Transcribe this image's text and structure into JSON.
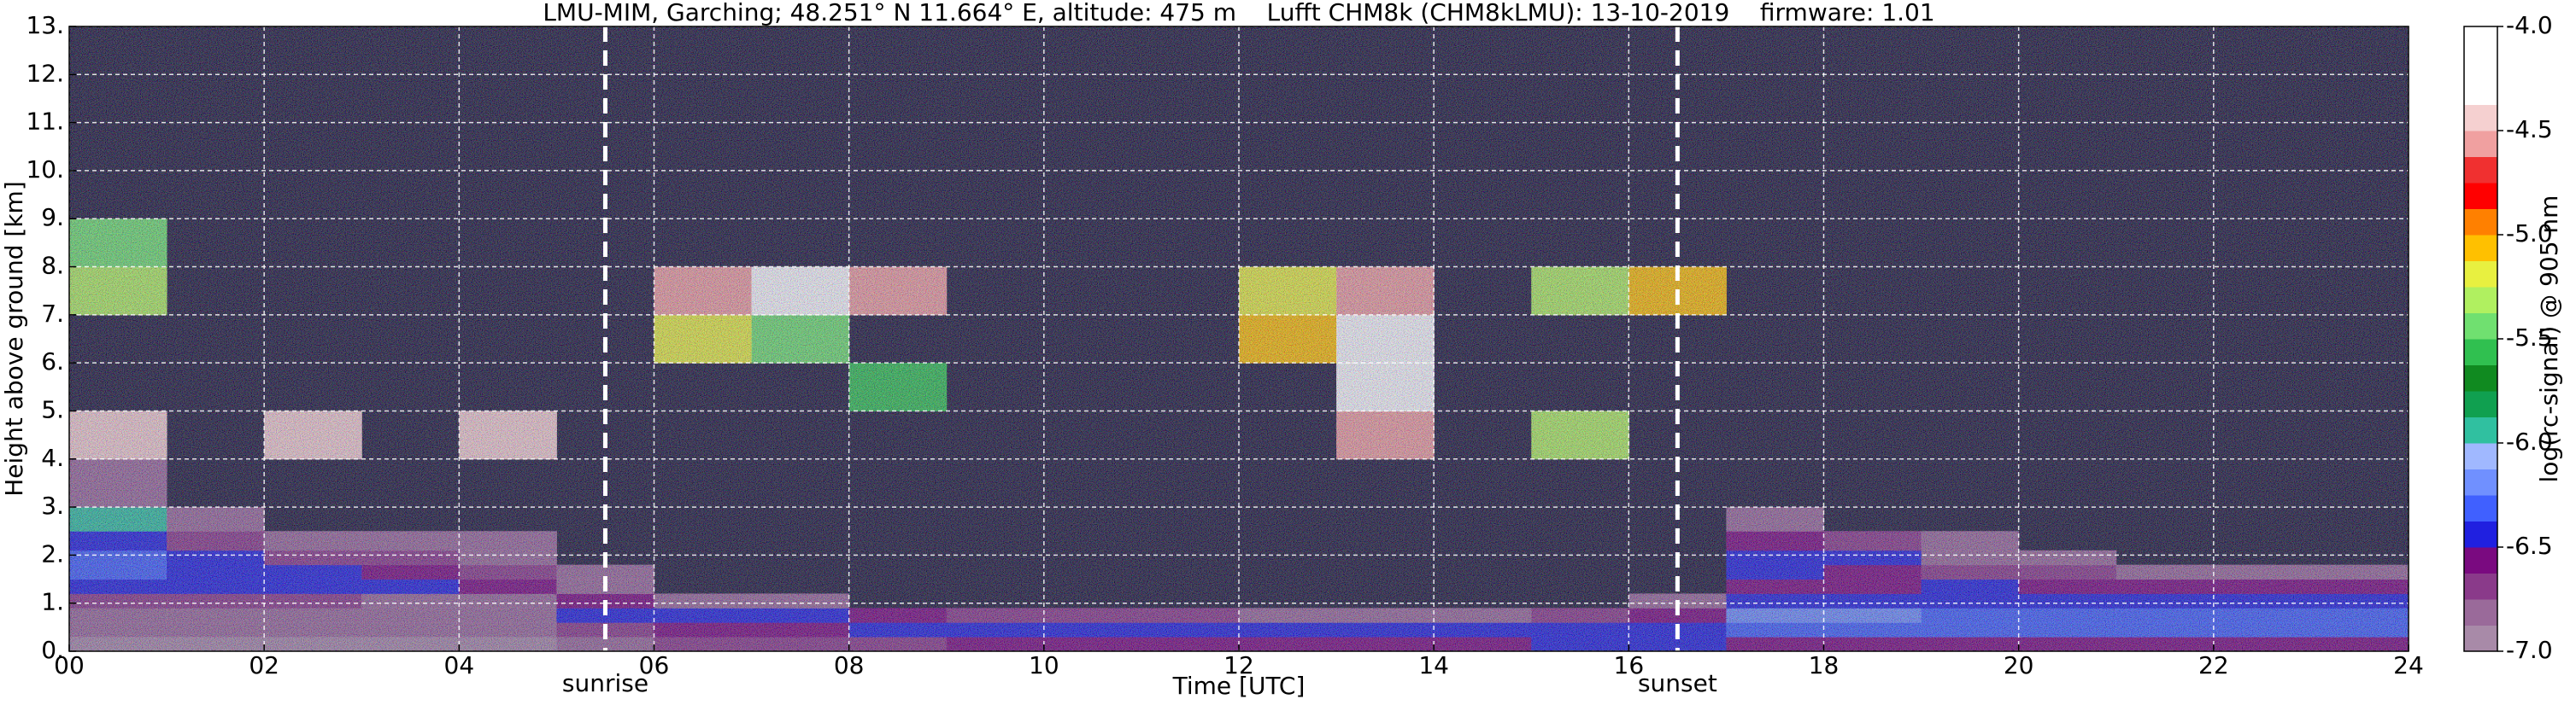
{
  "chart_data": {
    "type": "heatmap",
    "title": "LMU-MIM, Garching; 48.251° N 11.664° E, altitude: 475 m    Lufft CHM8k (CHM8kLMU): 13-10-2019    firmware: 1.01",
    "xlabel": "Time [UTC]",
    "ylabel": "Height above ground [km]",
    "colorbar_label": "log(rc-signal) @ 905 nm",
    "xlim": [
      0,
      24
    ],
    "ylim": [
      0,
      13
    ],
    "xticks": [
      {
        "value": 0,
        "label": "00"
      },
      {
        "value": 2,
        "label": "02"
      },
      {
        "value": 4,
        "label": "04"
      },
      {
        "value": 6,
        "label": "06"
      },
      {
        "value": 8,
        "label": "08"
      },
      10,
      12,
      14,
      16,
      18,
      20,
      22,
      24
    ],
    "yticks": [
      {
        "value": 0,
        "label": "0."
      },
      {
        "value": 1,
        "label": "1."
      },
      {
        "value": 2,
        "label": "2."
      },
      {
        "value": 3,
        "label": "3."
      },
      {
        "value": 4,
        "label": "4."
      },
      {
        "value": 5,
        "label": "5."
      },
      {
        "value": 6,
        "label": "6."
      },
      {
        "value": 7,
        "label": "7."
      },
      {
        "value": 8,
        "label": "8."
      },
      {
        "value": 9,
        "label": "9."
      },
      {
        "value": 10,
        "label": "10."
      },
      {
        "value": 11,
        "label": "11."
      },
      {
        "value": 12,
        "label": "12."
      },
      {
        "value": 13,
        "label": "13."
      }
    ],
    "grid": true,
    "clim": [
      -7,
      -4
    ],
    "cticks": [
      {
        "value": -4,
        "label": "-4.0"
      },
      -4.5,
      {
        "value": -5,
        "label": "-5.0"
      },
      -5.5,
      {
        "value": -6,
        "label": "-6.0"
      },
      -6.5,
      {
        "value": -7,
        "label": "-7.0"
      }
    ],
    "colors": [
      "#a88aa8",
      "#9a6a9a",
      "#8a3a8a",
      "#7a0a80",
      "#2020e0",
      "#4060ff",
      "#7090ff",
      "#a0b8ff",
      "#30c0a0",
      "#10a050",
      "#108a20",
      "#30c050",
      "#70e070",
      "#b0f060",
      "#e8f040",
      "#ffc000",
      "#ff8000",
      "#ff0000",
      "#f03030",
      "#f0a0a0",
      "#f5d0d0",
      "#ffffff",
      "#ffffff",
      "#ffffff"
    ],
    "annotations": [
      {
        "label": "sunrise",
        "x": 5.5
      },
      {
        "label": "sunset",
        "x": 16.5
      }
    ],
    "x_bins": [
      0,
      1,
      2,
      3,
      4,
      5,
      6,
      7,
      8,
      9,
      10,
      11,
      12,
      13,
      14,
      15,
      16,
      17,
      18,
      19,
      20,
      21,
      22,
      23,
      24
    ],
    "y_bins": [
      0,
      0.3,
      0.6,
      0.9,
      1.2,
      1.5,
      1.8,
      2.1,
      2.5,
      3,
      4,
      5,
      6,
      7,
      8,
      9,
      13
    ],
    "z": [
      [
        -6.9,
        -6.9,
        -6.9,
        -6.9,
        -6.9,
        -6.8,
        -6.7,
        -6.7,
        -6.7,
        -6.6,
        -6.6,
        -6.6,
        -6.6,
        -6.6,
        -6.6,
        -6.5,
        -6.5,
        -6.6,
        -6.6,
        -6.6,
        -6.6,
        -6.6,
        -6.6,
        -6.6
      ],
      [
        -6.85,
        -6.85,
        -6.85,
        -6.85,
        -6.85,
        -6.7,
        -6.6,
        -6.6,
        -6.5,
        -6.4,
        -6.4,
        -6.4,
        -6.4,
        -6.4,
        -6.4,
        -6.4,
        -6.4,
        -6.3,
        -6.3,
        -6.3,
        -6.3,
        -6.3,
        -6.3,
        -6.3
      ],
      [
        -6.8,
        -6.8,
        -6.8,
        -6.8,
        -6.8,
        -6.5,
        -6.45,
        -6.5,
        -6.6,
        -6.7,
        -6.75,
        -6.75,
        -6.8,
        -6.8,
        -6.8,
        -6.7,
        -6.6,
        -6.25,
        -6.25,
        -6.3,
        -6.3,
        -6.3,
        -6.3,
        -6.3
      ],
      [
        -6.7,
        -6.75,
        -6.75,
        -6.8,
        -6.8,
        -6.6,
        -6.8,
        -6.85,
        null,
        null,
        null,
        null,
        null,
        null,
        null,
        null,
        -6.85,
        -6.4,
        -6.4,
        -6.4,
        -6.45,
        -6.45,
        -6.45,
        -6.45
      ],
      [
        -6.45,
        -6.45,
        -6.5,
        -6.5,
        -6.6,
        -6.8,
        null,
        null,
        null,
        null,
        null,
        null,
        null,
        null,
        null,
        null,
        null,
        -6.6,
        -6.55,
        -6.5,
        -6.55,
        -6.6,
        -6.6,
        -6.6
      ],
      [
        -6.35,
        -6.4,
        -6.5,
        -6.6,
        -6.7,
        -6.85,
        null,
        null,
        null,
        null,
        null,
        null,
        null,
        null,
        null,
        null,
        null,
        -6.5,
        -6.6,
        -6.75,
        -6.75,
        -6.8,
        -6.8,
        -6.8
      ],
      [
        -6.3,
        -6.5,
        -6.7,
        -6.75,
        -6.8,
        null,
        null,
        null,
        null,
        null,
        null,
        null,
        null,
        null,
        null,
        null,
        null,
        -6.4,
        -6.5,
        -6.8,
        -6.85,
        null,
        null,
        null
      ],
      [
        -6.4,
        -6.7,
        -6.8,
        -6.85,
        -6.85,
        null,
        null,
        null,
        null,
        null,
        null,
        null,
        null,
        null,
        null,
        null,
        null,
        -6.6,
        -6.7,
        -6.85,
        null,
        null,
        null,
        null
      ],
      [
        -5.9,
        -6.85,
        null,
        null,
        null,
        null,
        null,
        null,
        null,
        null,
        null,
        null,
        null,
        null,
        null,
        null,
        null,
        -6.85,
        null,
        null,
        null,
        null,
        null,
        null
      ],
      [
        -6.8,
        null,
        null,
        null,
        null,
        null,
        null,
        null,
        null,
        null,
        null,
        null,
        null,
        null,
        null,
        null,
        null,
        null,
        null,
        null,
        null,
        null,
        null,
        null
      ],
      [
        -4.4,
        null,
        -4.4,
        null,
        -4.5,
        null,
        null,
        null,
        null,
        null,
        null,
        null,
        null,
        -4.6,
        null,
        -5.3,
        null,
        null,
        null,
        null,
        null,
        null,
        null,
        null
      ],
      [
        null,
        null,
        null,
        null,
        null,
        null,
        null,
        null,
        -5.6,
        null,
        null,
        null,
        null,
        -4.3,
        null,
        null,
        null,
        null,
        null,
        null,
        null,
        null,
        null,
        null
      ],
      [
        null,
        null,
        null,
        null,
        null,
        null,
        -5.2,
        -5.4,
        null,
        null,
        null,
        null,
        -5.1,
        -4.2,
        null,
        null,
        null,
        null,
        null,
        null,
        null,
        null,
        null,
        null
      ],
      [
        -5.3,
        null,
        null,
        null,
        null,
        null,
        -4.6,
        -4.3,
        -4.6,
        null,
        null,
        null,
        -5.2,
        -4.6,
        null,
        -5.3,
        -5.1,
        null,
        null,
        null,
        null,
        null,
        null,
        null
      ],
      [
        -5.4,
        null,
        null,
        null,
        null,
        null,
        null,
        null,
        null,
        null,
        null,
        null,
        null,
        null,
        null,
        null,
        null,
        null,
        null,
        null,
        null,
        null,
        null,
        null
      ],
      [
        null,
        null,
        null,
        null,
        null,
        null,
        null,
        null,
        null,
        null,
        null,
        null,
        null,
        null,
        null,
        null,
        null,
        null,
        null,
        null,
        null,
        null,
        null,
        null
      ]
    ]
  }
}
